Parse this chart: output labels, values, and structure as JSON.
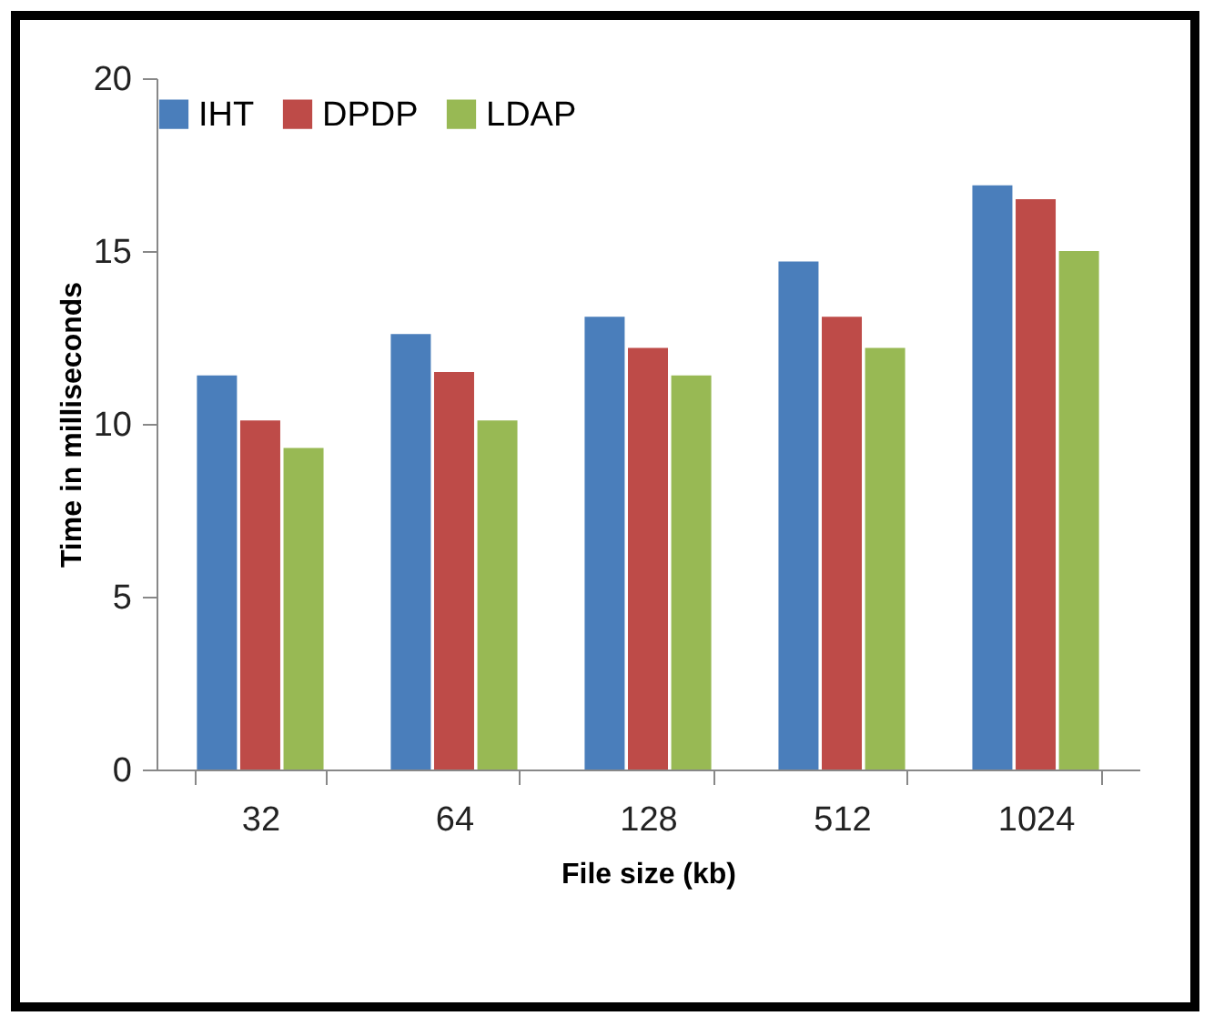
{
  "chart_data": {
    "type": "bar",
    "xlabel": "File size (kb)",
    "ylabel": "Time in milliseconds",
    "categories": [
      "32",
      "64",
      "128",
      "512",
      "1024"
    ],
    "series": [
      {
        "name": "IHT",
        "color": "#4a7ebb",
        "values": [
          11.4,
          12.6,
          13.1,
          14.7,
          16.9
        ]
      },
      {
        "name": "DPDP",
        "color": "#be4b48",
        "values": [
          10.1,
          11.5,
          12.2,
          13.1,
          16.5
        ]
      },
      {
        "name": "LDAP",
        "color": "#98b954",
        "values": [
          9.3,
          10.1,
          11.4,
          12.2,
          15.0
        ]
      }
    ],
    "ylim": [
      0,
      20
    ],
    "yticks": [
      0,
      5,
      10,
      15,
      20
    ],
    "grid": false,
    "legend": "top"
  }
}
